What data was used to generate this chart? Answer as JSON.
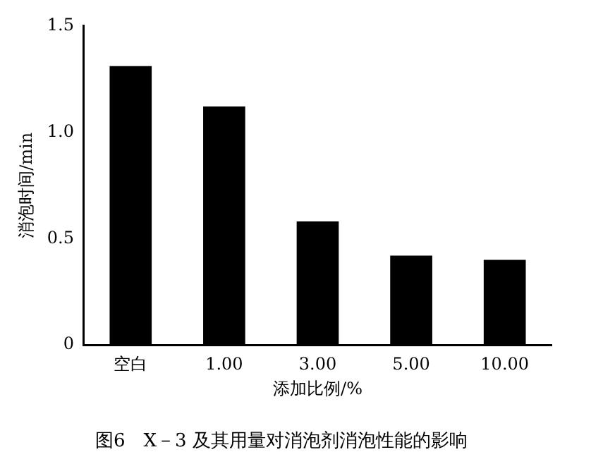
{
  "chart_data": {
    "type": "bar",
    "title": "图6　X－3 及其用量对消泡剂消泡性能的影响",
    "xlabel": "添加比例/%",
    "ylabel": "消泡时间/min",
    "categories": [
      "空白",
      "1.00",
      "3.00",
      "5.00",
      "10.00"
    ],
    "values": [
      1.31,
      1.12,
      0.58,
      0.42,
      0.4
    ],
    "color": "#000000",
    "ylim": [
      0,
      1.5
    ],
    "yticks": [
      0,
      {
        "value": 0.5,
        "label": "0.5"
      },
      {
        "value": 1,
        "label": "1.0"
      },
      {
        "value": 1.5,
        "label": "1.5"
      }
    ],
    "grid": false
  }
}
